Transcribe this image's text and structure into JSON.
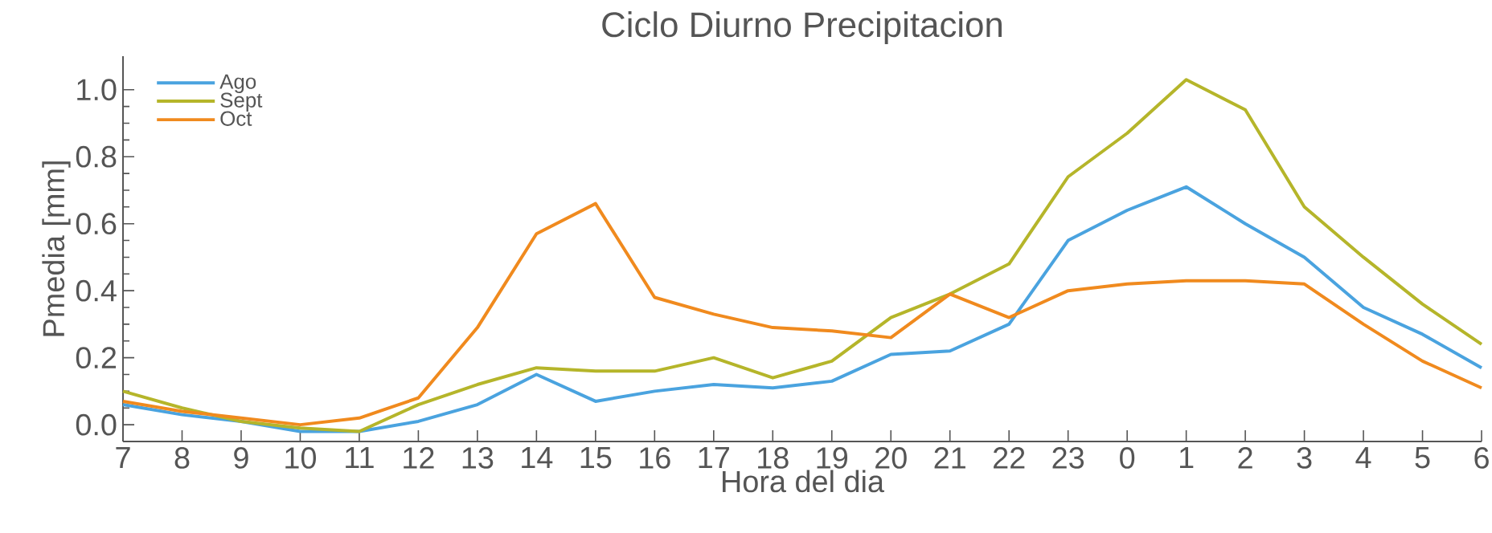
{
  "chart_data": {
    "type": "line",
    "title": "Ciclo Diurno Precipitacion",
    "xlabel": "Hora del dia",
    "ylabel": "Pmedia [mm]",
    "categories": [
      "7",
      "8",
      "9",
      "10",
      "11",
      "12",
      "13",
      "14",
      "15",
      "16",
      "17",
      "18",
      "19",
      "20",
      "21",
      "22",
      "23",
      "0",
      "1",
      "2",
      "3",
      "4",
      "5",
      "6"
    ],
    "series": [
      {
        "name": "Ago",
        "color": "#4aa3df",
        "values": [
          0.06,
          0.03,
          0.01,
          -0.02,
          -0.02,
          0.01,
          0.06,
          0.15,
          0.07,
          0.1,
          0.12,
          0.11,
          0.13,
          0.21,
          0.22,
          0.3,
          0.55,
          0.64,
          0.71,
          0.6,
          0.5,
          0.35,
          0.27,
          0.17
        ]
      },
      {
        "name": "Sept",
        "color": "#b5b52a",
        "values": [
          0.1,
          0.05,
          0.01,
          -0.01,
          -0.02,
          0.06,
          0.12,
          0.17,
          0.16,
          0.16,
          0.2,
          0.14,
          0.19,
          0.32,
          0.39,
          0.48,
          0.74,
          0.87,
          1.03,
          0.94,
          0.65,
          0.5,
          0.36,
          0.24
        ]
      },
      {
        "name": "Oct",
        "color": "#f08a1e",
        "values": [
          0.07,
          0.04,
          0.02,
          0.0,
          0.02,
          0.08,
          0.29,
          0.57,
          0.66,
          0.38,
          0.33,
          0.29,
          0.28,
          0.26,
          0.39,
          0.32,
          0.4,
          0.42,
          0.43,
          0.43,
          0.42,
          0.3,
          0.19,
          0.11
        ]
      }
    ],
    "ylim": [
      -0.05,
      1.1
    ],
    "yticks": [
      {
        "value": 0,
        "label": "0.0"
      },
      {
        "value": 0.2,
        "label": "0.2"
      },
      {
        "value": 0.4,
        "label": "0.4"
      },
      {
        "value": 0.6,
        "label": "0.6"
      },
      {
        "value": 0.8,
        "label": "0.8"
      },
      {
        "value": 1.0,
        "label": "1.0"
      }
    ],
    "legend": "top left",
    "line_style": "solid"
  }
}
